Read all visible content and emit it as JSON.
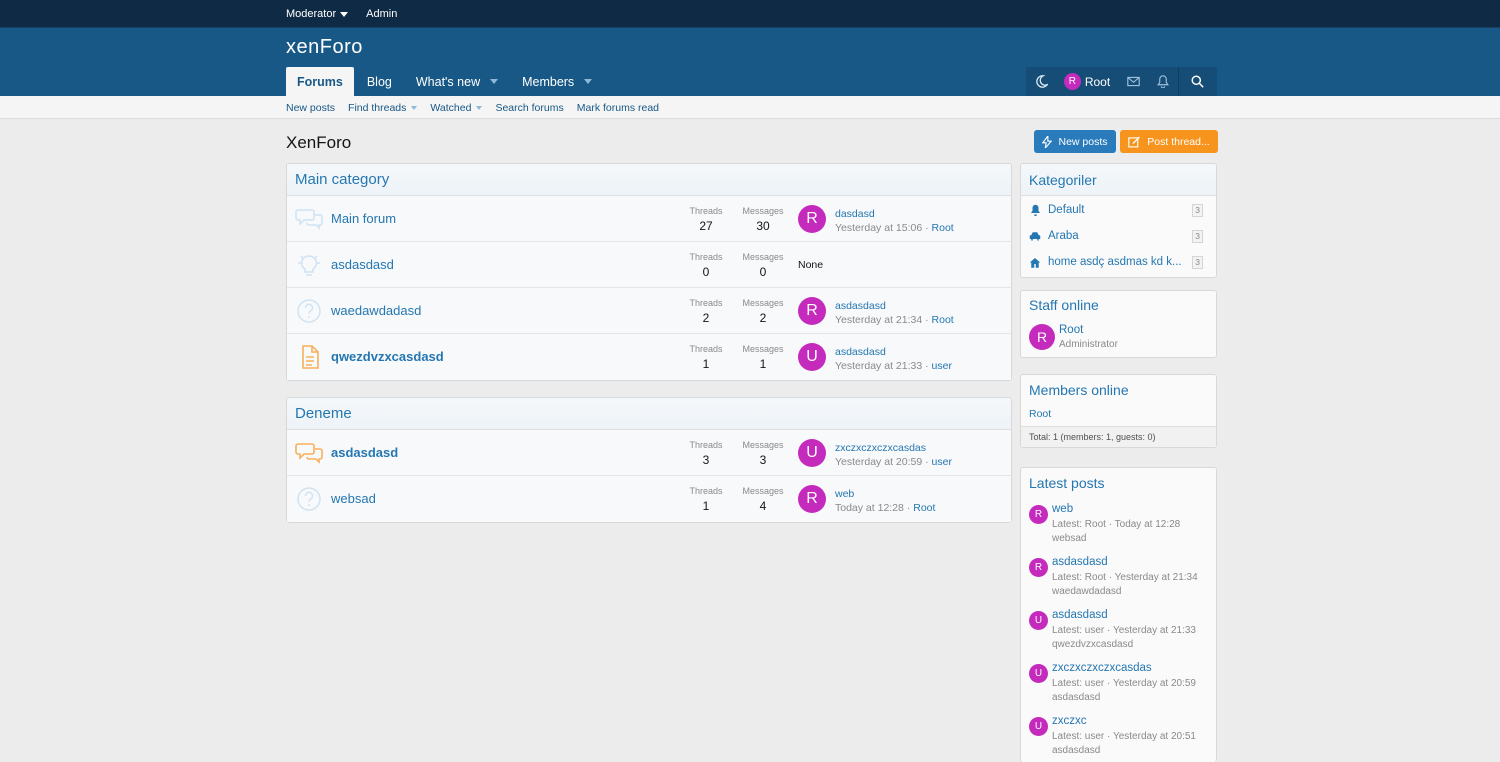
{
  "topbar": {
    "moderator": "Moderator",
    "admin": "Admin"
  },
  "header": {
    "logo": "xenForo"
  },
  "nav": {
    "tabs": [
      {
        "label": "Forums",
        "active": true
      },
      {
        "label": "Blog"
      },
      {
        "label": "What's new"
      },
      {
        "label": "Members"
      }
    ],
    "user": "Root",
    "user_initial": "R"
  },
  "subnav": {
    "new_posts": "New posts",
    "find_threads": "Find threads",
    "watched": "Watched",
    "search_forums": "Search forums",
    "mark_read": "Mark forums read"
  },
  "page": {
    "title": "XenForo",
    "new_posts_btn": "New posts",
    "post_thread_btn": "Post thread..."
  },
  "categories": [
    {
      "title": "Main category",
      "nodes": [
        {
          "title": "Main forum",
          "threads_label": "Threads",
          "threads": "27",
          "messages_label": "Messages",
          "messages": "30",
          "last_title": "dasdasd",
          "last_meta": "Yesterday at 15:06 ·",
          "last_user": "Root",
          "avatar": "R"
        },
        {
          "title": "asdasdasd",
          "threads_label": "Threads",
          "threads": "0",
          "messages_label": "Messages",
          "messages": "0",
          "none": "None"
        },
        {
          "title": "waedawdadasd",
          "threads_label": "Threads",
          "threads": "2",
          "messages_label": "Messages",
          "messages": "2",
          "last_title": "asdasdasd",
          "last_meta": "Yesterday at 21:34 ·",
          "last_user": "Root",
          "avatar": "R"
        },
        {
          "title": "qwezdvzxcasdasd",
          "threads_label": "Threads",
          "threads": "1",
          "messages_label": "Messages",
          "messages": "1",
          "last_title": "asdasdasd",
          "last_meta": "Yesterday at 21:33 ·",
          "last_user": "user",
          "avatar": "U"
        }
      ]
    },
    {
      "title": "Deneme",
      "nodes": [
        {
          "title": "asdasdasd",
          "threads_label": "Threads",
          "threads": "3",
          "messages_label": "Messages",
          "messages": "3",
          "last_title": "zxczxczxczxcasdas",
          "last_meta": "Yesterday at 20:59 ·",
          "last_user": "user",
          "avatar": "U"
        },
        {
          "title": "websad",
          "threads_label": "Threads",
          "threads": "1",
          "messages_label": "Messages",
          "messages": "4",
          "last_title": "web",
          "last_meta": "Today at 12:28 ·",
          "last_user": "Root",
          "avatar": "R"
        }
      ]
    }
  ],
  "sidebar": {
    "kategoriler": {
      "title": "Kategoriler",
      "items": [
        {
          "label": "Default",
          "count": "3"
        },
        {
          "label": "Araba",
          "count": "3"
        },
        {
          "label": "home asdç asdmas kd k...",
          "count": "3"
        }
      ]
    },
    "staff": {
      "title": "Staff online",
      "name": "Root",
      "role": "Administrator",
      "avatar": "R"
    },
    "members": {
      "title": "Members online",
      "member": "Root",
      "total": "Total: 1 (members: 1, guests: 0)"
    },
    "latest": {
      "title": "Latest posts",
      "posts": [
        {
          "title": "web",
          "meta": "Latest: Root · Today at 12:28",
          "forum": "websad",
          "avatar": "R"
        },
        {
          "title": "asdasdasd",
          "meta": "Latest: Root · Yesterday at 21:34",
          "forum": "waedawdadasd",
          "avatar": "R"
        },
        {
          "title": "asdasdasd",
          "meta": "Latest: user · Yesterday at 21:33",
          "forum": "qwezdvzxcasdasd",
          "avatar": "U"
        },
        {
          "title": "zxczxczxczxcasdas",
          "meta": "Latest: user · Yesterday at 20:59",
          "forum": "asdasdasd",
          "avatar": "U"
        },
        {
          "title": "zxczxc",
          "meta": "Latest: user · Yesterday at 20:51",
          "forum": "asdasdasd",
          "avatar": "U"
        }
      ]
    }
  },
  "colors": {
    "header": "#185886",
    "topbar": "#0f2a44",
    "avatar": "#c42bbd",
    "orange": "#f7941d",
    "link": "#2577b1"
  }
}
